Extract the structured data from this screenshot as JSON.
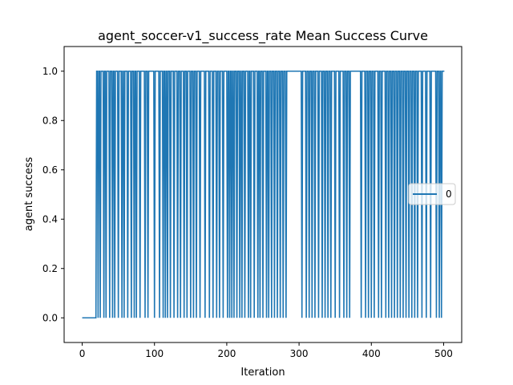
{
  "chart_data": {
    "type": "line",
    "title": "agent_soccer-v1_success_rate Mean Success Curve",
    "xlabel": "Iteration",
    "ylabel": "agent success",
    "xlim": [
      -25,
      525
    ],
    "ylim": [
      -0.1,
      1.1
    ],
    "x_ticks": [
      0,
      100,
      200,
      300,
      400,
      500
    ],
    "y_ticks": [
      0.0,
      0.2,
      0.4,
      0.6,
      0.8,
      1.0
    ],
    "x_tick_labels": [
      "0",
      "100",
      "200",
      "300",
      "400",
      "500"
    ],
    "y_tick_labels": [
      "0.0",
      "0.2",
      "0.4",
      "0.6",
      "0.8",
      "1.0"
    ],
    "grid": false,
    "legend_position": "center-right",
    "series": [
      {
        "name": "0",
        "color": "#1f77b4",
        "zero_iterations": [
          0,
          1,
          2,
          3,
          4,
          5,
          6,
          7,
          8,
          9,
          10,
          11,
          12,
          13,
          14,
          15,
          16,
          17,
          18,
          19,
          22,
          25,
          30,
          33,
          38,
          42,
          45,
          50,
          55,
          58,
          63,
          68,
          72,
          75,
          80,
          87,
          91,
          100,
          107,
          112,
          115,
          118,
          122,
          127,
          132,
          136,
          141,
          145,
          150,
          154,
          158,
          163,
          170,
          176,
          181,
          186,
          190,
          195,
          201,
          204,
          207,
          210,
          214,
          218,
          221,
          225,
          230,
          233,
          238,
          243,
          246,
          250,
          255,
          258,
          262,
          266,
          270,
          274,
          278,
          282,
          304,
          310,
          314,
          318,
          322,
          327,
          332,
          336,
          340,
          344,
          350,
          356,
          362,
          366,
          370,
          386,
          392,
          396,
          400,
          404,
          410,
          414,
          420,
          424,
          428,
          432,
          436,
          440,
          444,
          448,
          452,
          456,
          460,
          464,
          470,
          476,
          482,
          490,
          494,
          497
        ],
        "max_iteration": 501
      }
    ]
  }
}
